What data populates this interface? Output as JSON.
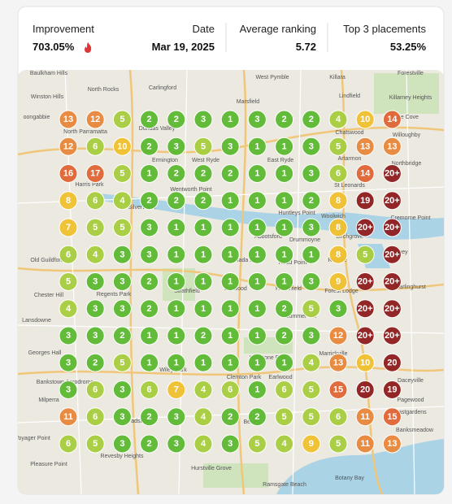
{
  "header": {
    "improvement": {
      "label": "Improvement",
      "value": "703.05%"
    },
    "date": {
      "label": "Date",
      "value": "Mar 19, 2025"
    },
    "average": {
      "label": "Average ranking",
      "value": "5.72"
    },
    "top3": {
      "label": "Top 3 placements",
      "value": "53.25%"
    }
  },
  "map": {
    "labels": [
      "Baulkham Hills",
      "North Rocks",
      "West Pymble",
      "Killara",
      "Forestville",
      "Winston Hills",
      "Carlingford",
      "Marsfield",
      "Lindfield",
      "Killarney Heights",
      "oongabbie",
      "Dundas Valley",
      "Lane Cove",
      "North Parramatta",
      "Chatswood",
      "Willoughby",
      "Ermington",
      "West Ryde",
      "East Ryde",
      "Artarmon",
      "Northbridge",
      "Harris Park",
      "St Leonards",
      "Wentworth Point",
      "Silverwater",
      "Huntleys Point",
      "Woolwich",
      "Cremorne Point",
      "Abbotsford",
      "Drummoyne",
      "Birchgrove",
      "Old Guildford",
      "Canada Bay",
      "Rodd Point",
      "Rozelle",
      "Sydney",
      "Strathfield",
      "Burwood",
      "Haberfield",
      "Forest Lodge",
      "Darlinghurst",
      "Chester Hill",
      "Regents Park",
      "Summer Hill",
      "Lansdowne",
      "Marrickville",
      "Georges Hall",
      "Hurlstone Park",
      "Wiley Park",
      "Bankstown Aerodrome",
      "Clemton Park",
      "Earlwood",
      "Daceyville",
      "Milperra",
      "Pagewood",
      "Padstow",
      "Bexley",
      "Eastgardens",
      "Voyager Point",
      "Revesby Heights",
      "Hurstville Grove",
      "Banksmeadow",
      "Pleasure Point",
      "Ramsgate Beach",
      "Botany Bay"
    ],
    "grid": [
      [
        "13",
        "12",
        "5",
        "2",
        "2",
        "3",
        "1",
        "3",
        "2",
        "2",
        "4",
        "10",
        "14"
      ],
      [
        "12",
        "6",
        "10",
        "2",
        "3",
        "5",
        "3",
        "1",
        "1",
        "3",
        "5",
        "13",
        "13"
      ],
      [
        "16",
        "17",
        "5",
        "1",
        "2",
        "2",
        "2",
        "1",
        "1",
        "3",
        "6",
        "14",
        "20+"
      ],
      [
        "8",
        "6",
        "4",
        "2",
        "2",
        "2",
        "1",
        "1",
        "1",
        "2",
        "8",
        "19",
        "20+"
      ],
      [
        "7",
        "5",
        "5",
        "3",
        "1",
        "1",
        "1",
        "1",
        "1",
        "3",
        "8",
        "20+",
        "20+"
      ],
      [
        "6",
        "4",
        "3",
        "3",
        "1",
        "1",
        "1",
        "1",
        "1",
        "1",
        "8",
        "5",
        "20+"
      ],
      [
        "5",
        "3",
        "3",
        "2",
        "1",
        "1",
        "1",
        "1",
        "1",
        "3",
        "9",
        "20+",
        "20+"
      ],
      [
        "4",
        "3",
        "3",
        "2",
        "1",
        "1",
        "1",
        "1",
        "2",
        "5",
        "3",
        "20+",
        "20+"
      ],
      [
        "3",
        "3",
        "2",
        "1",
        "1",
        "2",
        "1",
        "1",
        "2",
        "3",
        "12",
        "20+",
        "20+"
      ],
      [
        "3",
        "2",
        "5",
        "1",
        "1",
        "1",
        "1",
        "1",
        "1",
        "4",
        "13",
        "10",
        "20"
      ],
      [
        "3",
        "6",
        "3",
        "6",
        "7",
        "4",
        "6",
        "1",
        "6",
        "5",
        "15",
        "20",
        "19"
      ],
      [
        "11",
        "6",
        "3",
        "2",
        "3",
        "4",
        "2",
        "2",
        "5",
        "5",
        "6",
        "11",
        "15"
      ],
      [
        "6",
        "5",
        "3",
        "2",
        "3",
        "4",
        "3",
        "5",
        "4",
        "9",
        "5",
        "11",
        "13"
      ]
    ]
  }
}
